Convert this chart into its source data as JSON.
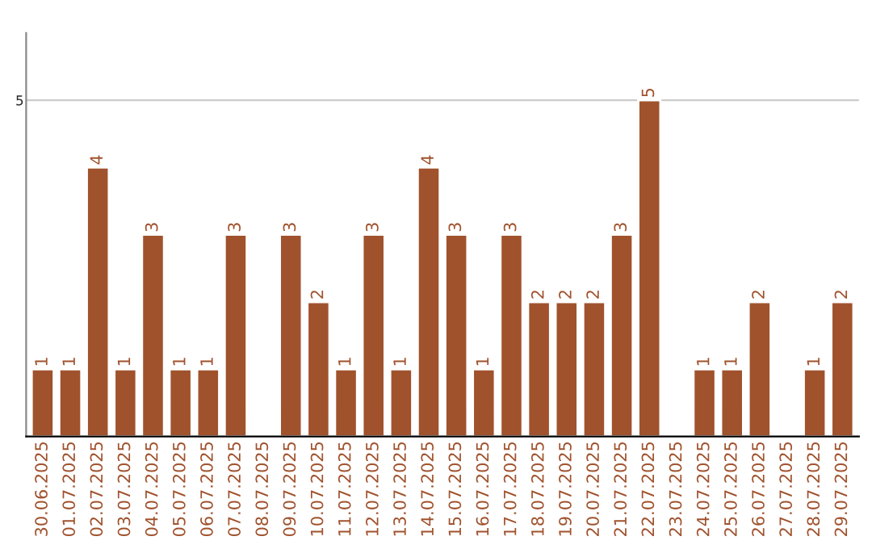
{
  "chart_data": {
    "type": "bar",
    "categories": [
      "30.06.2025",
      "01.07.2025",
      "02.07.2025",
      "03.07.2025",
      "04.07.2025",
      "05.07.2025",
      "06.07.2025",
      "07.07.2025",
      "08.07.2025",
      "09.07.2025",
      "10.07.2025",
      "11.07.2025",
      "12.07.2025",
      "13.07.2025",
      "14.07.2025",
      "15.07.2025",
      "16.07.2025",
      "17.07.2025",
      "18.07.2025",
      "19.07.2025",
      "20.07.2025",
      "21.07.2025",
      "22.07.2025",
      "23.07.2025",
      "24.07.2025",
      "25.07.2025",
      "26.07.2025",
      "27.07.2025",
      "28.07.2025",
      "29.07.2025"
    ],
    "values": [
      1,
      1,
      4,
      1,
      3,
      1,
      1,
      3,
      null,
      3,
      2,
      1,
      3,
      1,
      4,
      3,
      1,
      3,
      2,
      2,
      2,
      3,
      5,
      null,
      1,
      1,
      2,
      null,
      1,
      2
    ],
    "value_labels": [
      "1",
      "1",
      "4",
      "1",
      "3",
      "1",
      "1",
      "3",
      null,
      "3",
      "2",
      "1",
      "3",
      "1",
      "4",
      "3",
      "1",
      "3",
      "2",
      "2",
      "2",
      "3",
      "5",
      null,
      "1",
      "1",
      "2",
      null,
      "1",
      "2"
    ],
    "color": "#a0522d",
    "ylim": [
      0,
      6
    ],
    "yticks": [
      5
    ],
    "grid": "y"
  }
}
